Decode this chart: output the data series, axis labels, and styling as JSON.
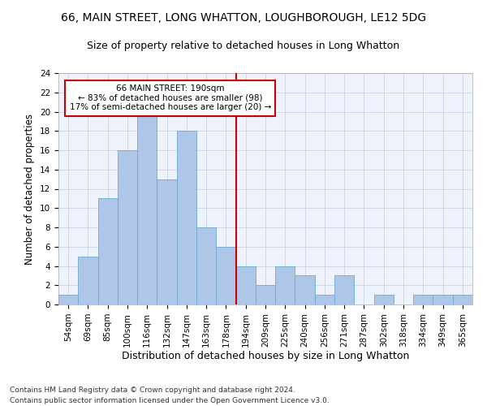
{
  "title1": "66, MAIN STREET, LONG WHATTON, LOUGHBOROUGH, LE12 5DG",
  "title2": "Size of property relative to detached houses in Long Whatton",
  "xlabel": "Distribution of detached houses by size in Long Whatton",
  "ylabel": "Number of detached properties",
  "categories": [
    "54sqm",
    "69sqm",
    "85sqm",
    "100sqm",
    "116sqm",
    "132sqm",
    "147sqm",
    "163sqm",
    "178sqm",
    "194sqm",
    "209sqm",
    "225sqm",
    "240sqm",
    "256sqm",
    "271sqm",
    "287sqm",
    "302sqm",
    "318sqm",
    "334sqm",
    "349sqm",
    "365sqm"
  ],
  "values": [
    1,
    5,
    11,
    16,
    20,
    13,
    18,
    8,
    6,
    4,
    2,
    4,
    3,
    1,
    3,
    0,
    1,
    0,
    1,
    1,
    1
  ],
  "bar_color": "#aec6e8",
  "bar_edge_color": "#6aaad4",
  "vline_x": 8.5,
  "vline_color": "#cc0000",
  "annotation_line1": "66 MAIN STREET: 190sqm",
  "annotation_line2": "← 83% of detached houses are smaller (98)",
  "annotation_line3": "17% of semi-detached houses are larger (20) →",
  "annotation_box_color": "white",
  "annotation_box_edge": "#cc0000",
  "ylim": [
    0,
    24
  ],
  "yticks": [
    0,
    2,
    4,
    6,
    8,
    10,
    12,
    14,
    16,
    18,
    20,
    22,
    24
  ],
  "footer1": "Contains HM Land Registry data © Crown copyright and database right 2024.",
  "footer2": "Contains public sector information licensed under the Open Government Licence v3.0.",
  "title1_fontsize": 10,
  "title2_fontsize": 9,
  "xlabel_fontsize": 9,
  "ylabel_fontsize": 8.5,
  "tick_fontsize": 7.5,
  "annotation_fontsize": 7.5,
  "footer_fontsize": 6.5,
  "grid_color": "#d0d8e8",
  "bg_color": "#eef2fa"
}
